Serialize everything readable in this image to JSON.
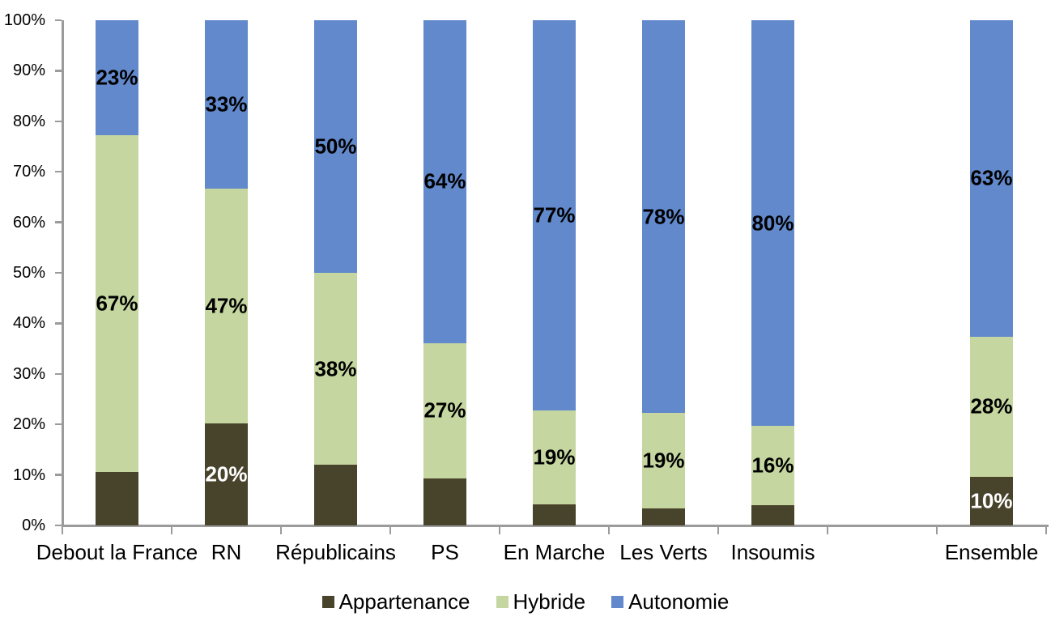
{
  "chart_data": {
    "type": "bar",
    "stacked": true,
    "percent_stacked": true,
    "title": "",
    "xlabel": "",
    "ylabel": "",
    "grid": false,
    "categories": [
      "Debout la France",
      "RN",
      "Républicains",
      "PS",
      "En Marche",
      "Les Verts",
      "Insoumis",
      "",
      "Ensemble"
    ],
    "series": [
      {
        "name": "Appartenance",
        "key": "appartenance",
        "color": "#48432B",
        "label_color": "#FFFFFF",
        "values": [
          10.6,
          20.2,
          12.0,
          9.3,
          4.2,
          3.3,
          4.0,
          null,
          9.6
        ],
        "labels": [
          "",
          "20%",
          "",
          "",
          "",
          "",
          "",
          "",
          "10%"
        ]
      },
      {
        "name": "Hybride",
        "key": "hybride",
        "color": "#C5D6A0",
        "label_color": "#000000",
        "values": [
          66.6,
          46.5,
          38.0,
          26.8,
          18.6,
          18.9,
          15.7,
          null,
          27.8
        ],
        "labels": [
          "67%",
          "47%",
          "38%",
          "27%",
          "19%",
          "19%",
          "16%",
          "",
          "28%"
        ]
      },
      {
        "name": "Autonomie",
        "key": "autonomie",
        "color": "#6189CC",
        "label_color": "#000000",
        "values": [
          22.8,
          33.3,
          50.0,
          63.9,
          77.2,
          77.8,
          80.3,
          null,
          62.6
        ],
        "labels": [
          "23%",
          "33%",
          "50%",
          "64%",
          "77%",
          "78%",
          "80%",
          "",
          "63%"
        ]
      }
    ],
    "y_axis": {
      "min": 0,
      "max": 100,
      "tick_step": 10,
      "tick_labels": [
        "0%",
        "10%",
        "20%",
        "30%",
        "40%",
        "50%",
        "60%",
        "70%",
        "80%",
        "90%",
        "100%"
      ]
    },
    "legend": {
      "position": "bottom",
      "items": [
        "Appartenance",
        "Hybride",
        "Autonomie"
      ]
    },
    "axis_color": "#9b9b9b"
  }
}
